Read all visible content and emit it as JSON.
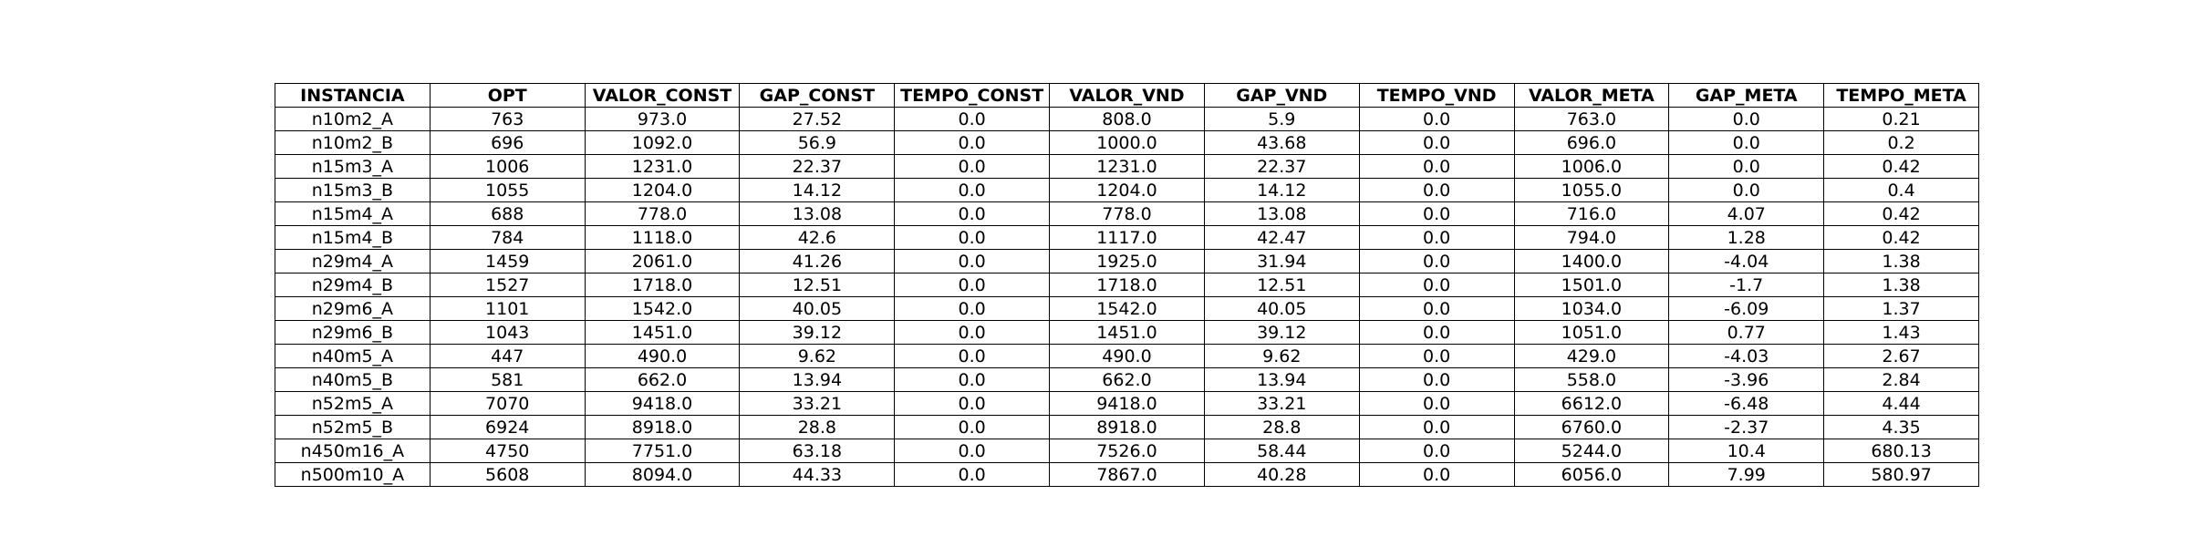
{
  "chart_data": {
    "type": "table",
    "columns": [
      "INSTANCIA",
      "OPT",
      "VALOR_CONST",
      "GAP_CONST",
      "TEMPO_CONST",
      "VALOR_VND",
      "GAP_VND",
      "TEMPO_VND",
      "VALOR_META",
      "GAP_META",
      "TEMPO_META"
    ],
    "rows": [
      [
        "n10m2_A",
        "763",
        "973.0",
        "27.52",
        "0.0",
        "808.0",
        "5.9",
        "0.0",
        "763.0",
        "0.0",
        "0.21"
      ],
      [
        "n10m2_B",
        "696",
        "1092.0",
        "56.9",
        "0.0",
        "1000.0",
        "43.68",
        "0.0",
        "696.0",
        "0.0",
        "0.2"
      ],
      [
        "n15m3_A",
        "1006",
        "1231.0",
        "22.37",
        "0.0",
        "1231.0",
        "22.37",
        "0.0",
        "1006.0",
        "0.0",
        "0.42"
      ],
      [
        "n15m3_B",
        "1055",
        "1204.0",
        "14.12",
        "0.0",
        "1204.0",
        "14.12",
        "0.0",
        "1055.0",
        "0.0",
        "0.4"
      ],
      [
        "n15m4_A",
        "688",
        "778.0",
        "13.08",
        "0.0",
        "778.0",
        "13.08",
        "0.0",
        "716.0",
        "4.07",
        "0.42"
      ],
      [
        "n15m4_B",
        "784",
        "1118.0",
        "42.6",
        "0.0",
        "1117.0",
        "42.47",
        "0.0",
        "794.0",
        "1.28",
        "0.42"
      ],
      [
        "n29m4_A",
        "1459",
        "2061.0",
        "41.26",
        "0.0",
        "1925.0",
        "31.94",
        "0.0",
        "1400.0",
        "-4.04",
        "1.38"
      ],
      [
        "n29m4_B",
        "1527",
        "1718.0",
        "12.51",
        "0.0",
        "1718.0",
        "12.51",
        "0.0",
        "1501.0",
        "-1.7",
        "1.38"
      ],
      [
        "n29m6_A",
        "1101",
        "1542.0",
        "40.05",
        "0.0",
        "1542.0",
        "40.05",
        "0.0",
        "1034.0",
        "-6.09",
        "1.37"
      ],
      [
        "n29m6_B",
        "1043",
        "1451.0",
        "39.12",
        "0.0",
        "1451.0",
        "39.12",
        "0.0",
        "1051.0",
        "0.77",
        "1.43"
      ],
      [
        "n40m5_A",
        "447",
        "490.0",
        "9.62",
        "0.0",
        "490.0",
        "9.62",
        "0.0",
        "429.0",
        "-4.03",
        "2.67"
      ],
      [
        "n40m5_B",
        "581",
        "662.0",
        "13.94",
        "0.0",
        "662.0",
        "13.94",
        "0.0",
        "558.0",
        "-3.96",
        "2.84"
      ],
      [
        "n52m5_A",
        "7070",
        "9418.0",
        "33.21",
        "0.0",
        "9418.0",
        "33.21",
        "0.0",
        "6612.0",
        "-6.48",
        "4.44"
      ],
      [
        "n52m5_B",
        "6924",
        "8918.0",
        "28.8",
        "0.0",
        "8918.0",
        "28.8",
        "0.0",
        "6760.0",
        "-2.37",
        "4.35"
      ],
      [
        "n450m16_A",
        "4750",
        "7751.0",
        "63.18",
        "0.0",
        "7526.0",
        "58.44",
        "0.0",
        "5244.0",
        "10.4",
        "680.13"
      ],
      [
        "n500m10_A",
        "5608",
        "8094.0",
        "44.33",
        "0.0",
        "7867.0",
        "40.28",
        "0.0",
        "6056.0",
        "7.99",
        "580.97"
      ]
    ]
  }
}
